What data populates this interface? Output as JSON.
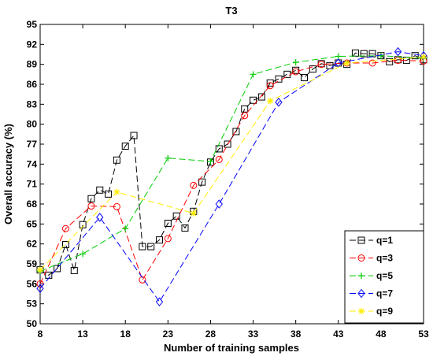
{
  "chart_data": {
    "type": "line",
    "title": "T3",
    "xlabel": "Number of training samples",
    "ylabel": "Overall accuracy (%)",
    "xlim": [
      8,
      53
    ],
    "ylim": [
      50,
      95
    ],
    "xticks": [
      8,
      13,
      18,
      23,
      28,
      33,
      38,
      43,
      48,
      53
    ],
    "yticks": [
      50,
      53,
      56,
      59,
      62,
      65,
      68,
      71,
      74,
      77,
      80,
      83,
      86,
      89,
      92,
      95
    ],
    "xtick_labels": [
      "8",
      "13",
      "18",
      "23",
      "28",
      "33",
      "38",
      "43",
      "48",
      "53"
    ],
    "ytick_labels": [
      "50",
      "53",
      "56",
      "59",
      "62",
      "65",
      "68",
      "71",
      "74",
      "77",
      "80",
      "83",
      "86",
      "89",
      "92",
      "95"
    ],
    "grid": false,
    "legend_position": "bottom-right",
    "series": [
      {
        "name": "q=1",
        "color": "#000000",
        "marker": "square",
        "x": [
          8,
          9,
          10,
          11,
          12,
          13,
          14,
          15,
          16,
          17,
          18,
          19,
          20,
          21,
          22,
          23,
          24,
          25,
          26,
          27,
          28,
          29,
          30,
          31,
          32,
          33,
          34,
          35,
          36,
          37,
          38,
          39,
          40,
          41,
          42,
          43,
          44,
          45,
          46,
          47,
          48,
          49,
          50,
          51,
          52,
          53
        ],
        "y": [
          58.1,
          57.3,
          58.3,
          61.9,
          58.0,
          64.9,
          68.8,
          70.1,
          69.5,
          74.6,
          76.7,
          78.3,
          61.6,
          61.6,
          62.6,
          65.1,
          66.2,
          64.4,
          66.9,
          71.3,
          74.3,
          76.3,
          77.0,
          78.9,
          82.3,
          83.6,
          84.1,
          86.2,
          86.8,
          87.5,
          88.1,
          87.0,
          88.3,
          89.1,
          88.8,
          89.2,
          89.0,
          90.7,
          90.6,
          90.6,
          90.3,
          89.4,
          89.7,
          89.6,
          90.3,
          89.7
        ]
      },
      {
        "name": "q=3",
        "color": "#ff0000",
        "marker": "circle",
        "x": [
          8,
          11,
          14,
          17,
          20,
          23,
          26,
          29,
          32,
          35,
          38,
          41,
          44,
          47,
          50,
          53
        ],
        "y": [
          56.0,
          64.3,
          67.7,
          67.6,
          56.6,
          62.8,
          70.8,
          74.7,
          81.3,
          85.8,
          87.9,
          89.0,
          89.2,
          89.2,
          89.6,
          89.5
        ]
      },
      {
        "name": "q=5",
        "color": "#00cc00",
        "marker": "plus",
        "x": [
          8,
          13,
          18,
          23,
          28,
          33,
          38,
          43,
          48,
          53
        ],
        "y": [
          57.9,
          60.5,
          64.3,
          74.9,
          74.4,
          87.5,
          89.3,
          90.2,
          90.3,
          89.9
        ]
      },
      {
        "name": "q=7",
        "color": "#0000ff",
        "marker": "diamond",
        "x": [
          8,
          15,
          22,
          29,
          36,
          43,
          50,
          53
        ],
        "y": [
          55.3,
          66.0,
          53.3,
          68.0,
          83.3,
          89.2,
          90.9,
          90.3
        ]
      },
      {
        "name": "q=9",
        "color": "#ffee00",
        "marker": "star",
        "x": [
          8,
          17,
          26,
          35,
          44,
          53
        ],
        "y": [
          58.1,
          69.8,
          66.6,
          83.5,
          89.2,
          90.1
        ]
      }
    ]
  }
}
